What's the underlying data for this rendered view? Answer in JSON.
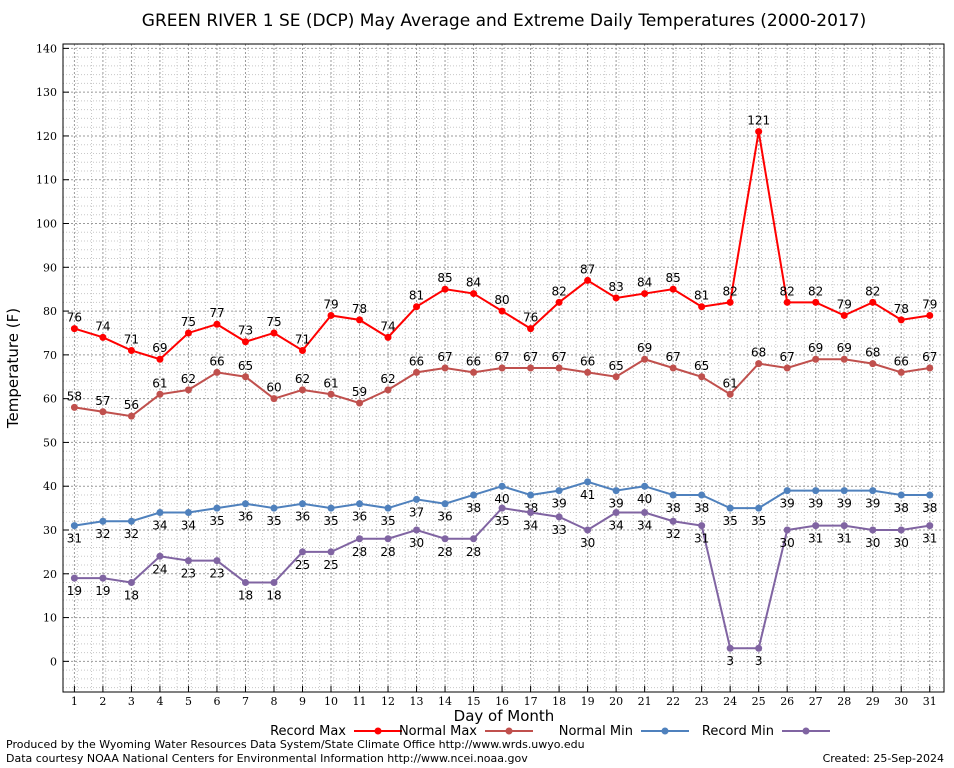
{
  "chart_data": {
    "type": "line",
    "title": "GREEN RIVER 1 SE (DCP) May Average and Extreme Daily Temperatures (2000-2017)",
    "xlabel": "Day of Month",
    "ylabel": "Temperature (F)",
    "xlim": [
      0.6,
      31.5
    ],
    "ylim": [
      -7,
      141
    ],
    "y_ticks": [
      0,
      10,
      20,
      30,
      40,
      50,
      60,
      70,
      80,
      90,
      100,
      110,
      120,
      130,
      140
    ],
    "x": [
      1,
      2,
      3,
      4,
      5,
      6,
      7,
      8,
      9,
      10,
      11,
      12,
      13,
      14,
      15,
      16,
      17,
      18,
      19,
      20,
      21,
      22,
      23,
      24,
      25,
      26,
      27,
      28,
      29,
      30,
      31
    ],
    "grid": true,
    "legend_position": "bottom",
    "series": [
      {
        "name": "Record Max",
        "color": "#ff0000",
        "label_position": "above",
        "values": [
          76,
          74,
          71,
          69,
          75,
          77,
          73,
          75,
          71,
          79,
          78,
          74,
          81,
          85,
          84,
          80,
          76,
          82,
          87,
          83,
          84,
          85,
          81,
          82,
          121,
          82,
          82,
          79,
          82,
          78,
          79
        ]
      },
      {
        "name": "Normal Max",
        "color": "#c0504d",
        "label_position": "above",
        "values": [
          58,
          57,
          56,
          61,
          62,
          66,
          65,
          60,
          62,
          61,
          59,
          62,
          66,
          67,
          66,
          67,
          67,
          67,
          66,
          65,
          69,
          67,
          65,
          61,
          68,
          67,
          69,
          69,
          68,
          66,
          67
        ]
      },
      {
        "name": "Normal Min",
        "color": "#4f81bd",
        "label_position": "below",
        "values": [
          31,
          32,
          32,
          34,
          34,
          35,
          36,
          35,
          36,
          35,
          36,
          35,
          37,
          36,
          38,
          40,
          38,
          39,
          41,
          39,
          40,
          38,
          38,
          35,
          35,
          39,
          39,
          39,
          39,
          38,
          38
        ]
      },
      {
        "name": "Record Min",
        "color": "#8064a2",
        "label_position": "below",
        "values": [
          19,
          19,
          18,
          24,
          23,
          23,
          18,
          18,
          25,
          25,
          28,
          28,
          30,
          28,
          28,
          35,
          34,
          33,
          30,
          34,
          34,
          32,
          31,
          3,
          3,
          30,
          31,
          31,
          30,
          30,
          31
        ]
      }
    ]
  },
  "footer": {
    "line1": "Produced by the Wyoming Water Resources Data System/State Climate Office http://www.wrds.uwyo.edu",
    "line2": "Data courtesy NOAA National Centers for Environmental Information http://www.ncei.noaa.gov",
    "created": "Created:  25-Sep-2024"
  }
}
